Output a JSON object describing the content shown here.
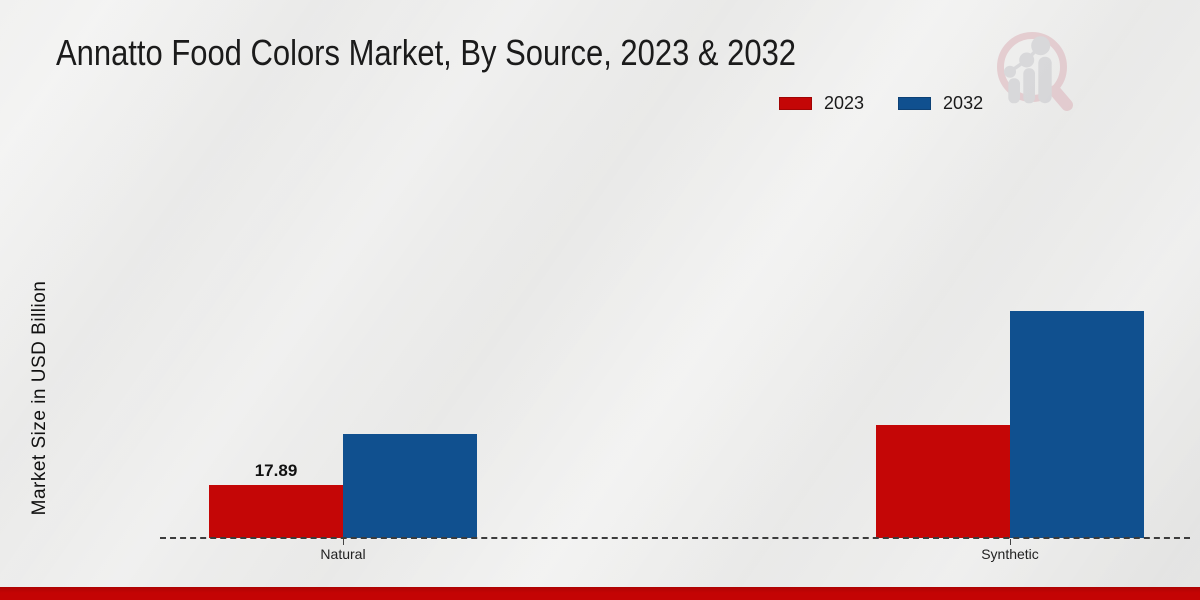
{
  "chart_data": {
    "type": "bar",
    "title": "Annatto Food Colors Market, By Source, 2023 & 2032",
    "xlabel": "",
    "ylabel": "Market Size in USD Billion",
    "categories": [
      "Natural",
      "Synthetic"
    ],
    "series": [
      {
        "name": "2023",
        "color": "#c40606",
        "values": [
          17.89,
          38.1
        ]
      },
      {
        "name": "2032",
        "color": "#10508f",
        "values": [
          35.1,
          76.6
        ]
      }
    ],
    "data_labels": [
      [
        "17.89",
        null
      ],
      [
        null,
        null
      ]
    ],
    "ylim": [
      0,
      80
    ],
    "grid": false,
    "axis_style": "dashed-baseline-only",
    "legend_position": "top-right",
    "note_estimated": "only the 17.89 value is labeled in the image; other values estimated from bar heights"
  },
  "watermark": {
    "icon": "market-research-magnifier-logo"
  },
  "accent": {
    "footer_bar_color": "#c40404",
    "footer_bar_top_color": "#ae0303"
  }
}
